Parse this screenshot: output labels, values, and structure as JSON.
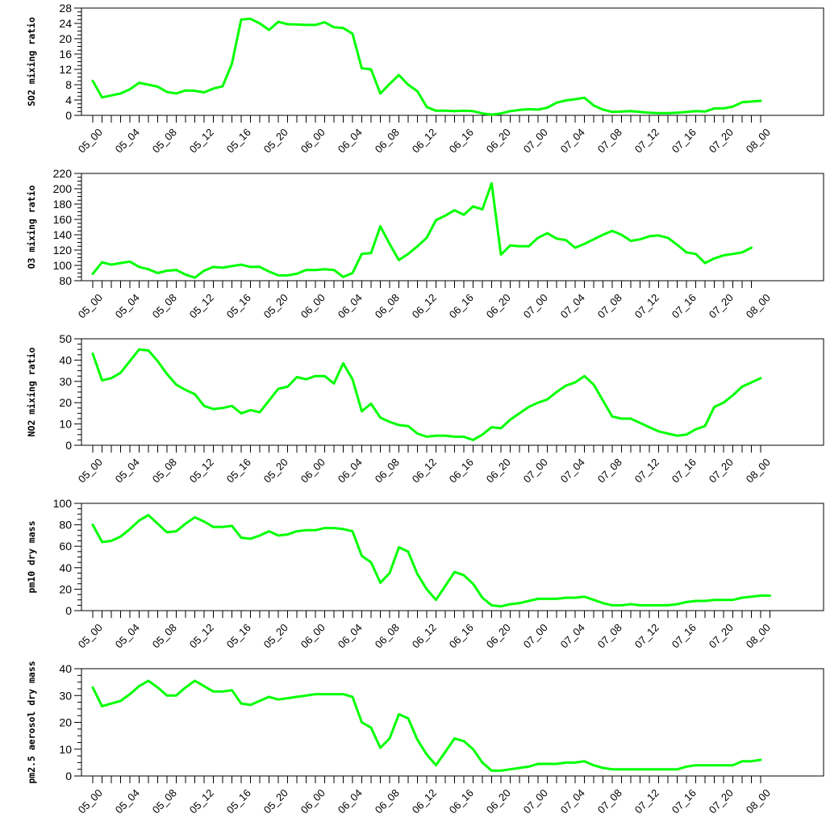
{
  "chart_data": [
    {
      "type": "line",
      "ylabel": "SO2 mixing ratio",
      "ylim": [
        0,
        28
      ],
      "yticks": [
        0,
        4,
        8,
        12,
        16,
        20,
        24,
        28
      ],
      "grid": false,
      "x_tick_labels": [
        "05_00",
        "05_04",
        "05_08",
        "05_12",
        "05_16",
        "05_20",
        "06_00",
        "06_04",
        "06_08",
        "06_12",
        "06_16",
        "06_20",
        "07_00",
        "07_04",
        "07_08",
        "07_12",
        "07_16",
        "07_20",
        "08_00"
      ],
      "series": [
        {
          "color": "#00ff00",
          "values": [
            9.0,
            4.7,
            5.2,
            5.7,
            6.8,
            8.5,
            8.0,
            7.5,
            6.1,
            5.7,
            6.5,
            6.4,
            6.0,
            7.0,
            7.6,
            13.5,
            25.0,
            25.2,
            24.0,
            22.3,
            24.4,
            23.8,
            23.7,
            23.6,
            23.6,
            24.3,
            23.0,
            22.8,
            21.3,
            12.3,
            12.0,
            5.7,
            8.2,
            10.5,
            8.0,
            6.3,
            2.2,
            1.2,
            1.2,
            1.1,
            1.2,
            1.1,
            0.5,
            0.2,
            0.5,
            1.1,
            1.4,
            1.6,
            1.5,
            2.0,
            3.3,
            3.9,
            4.2,
            4.6,
            2.6,
            1.5,
            0.9,
            1.0,
            1.1,
            0.9,
            0.7,
            0.6,
            0.6,
            0.7,
            0.9,
            1.1,
            1.0,
            1.8,
            1.8,
            2.3,
            3.4,
            3.6,
            3.8
          ]
        }
      ]
    },
    {
      "type": "line",
      "ylabel": "O3 mixing ratio",
      "ylim": [
        80,
        220
      ],
      "yticks": [
        80,
        100,
        120,
        140,
        160,
        180,
        200,
        220
      ],
      "grid": false,
      "x_tick_labels": [
        "05_00",
        "05_04",
        "05_08",
        "05_12",
        "05_16",
        "05_20",
        "06_00",
        "06_04",
        "06_08",
        "06_12",
        "06_16",
        "06_20",
        "07_00",
        "07_04",
        "07_08",
        "07_12",
        "07_16",
        "07_20",
        "08_00"
      ],
      "series": [
        {
          "color": "#00ff00",
          "values": [
            89,
            104,
            101,
            103,
            105,
            98,
            95,
            90,
            93,
            94,
            88,
            84,
            93,
            98,
            97,
            99,
            101,
            98,
            98,
            92,
            87,
            87,
            89,
            94,
            94,
            95,
            94,
            85,
            90,
            115,
            116,
            151,
            128,
            107,
            115,
            125,
            136,
            159,
            165,
            172,
            166,
            177,
            173,
            207,
            114,
            126,
            125,
            125,
            136,
            142,
            135,
            133,
            123,
            128,
            134,
            140,
            145,
            140,
            132,
            134,
            138,
            139,
            136,
            127,
            117,
            115,
            103,
            109,
            113,
            115,
            117,
            123
          ]
        }
      ]
    },
    {
      "type": "line",
      "ylabel": "NO2 mixing ratio",
      "ylim": [
        0,
        50
      ],
      "yticks": [
        0,
        10,
        20,
        30,
        40,
        50
      ],
      "grid": false,
      "x_tick_labels": [
        "05_00",
        "05_04",
        "05_08",
        "05_12",
        "05_16",
        "05_20",
        "06_00",
        "06_04",
        "06_08",
        "06_12",
        "06_16",
        "06_20",
        "07_00",
        "07_04",
        "07_08",
        "07_12",
        "07_16",
        "07_20",
        "08_00"
      ],
      "series": [
        {
          "color": "#00ff00",
          "values": [
            43,
            30.5,
            31.5,
            34,
            39.5,
            45,
            44.5,
            39.5,
            33.5,
            28.5,
            26,
            24,
            18.5,
            17,
            17.5,
            18.5,
            15,
            16.5,
            15.5,
            21,
            26.5,
            27.5,
            32,
            31,
            32.5,
            32.5,
            29,
            38.5,
            31,
            16,
            19.5,
            13,
            11,
            9.5,
            9,
            5.5,
            4,
            4.5,
            4.5,
            4,
            4,
            2.5,
            5,
            8.5,
            8,
            12,
            15,
            18,
            20,
            21.5,
            25,
            28,
            29.5,
            32.5,
            28.5,
            21,
            13.5,
            12.5,
            12.5,
            10.5,
            8.5,
            6.5,
            5.5,
            4.5,
            5,
            7.5,
            9,
            18,
            20,
            23.5,
            27.5,
            29.5,
            31.5
          ]
        }
      ]
    },
    {
      "type": "line",
      "ylabel": "pm10 dry mass",
      "ylim": [
        0,
        100
      ],
      "yticks": [
        0,
        20,
        40,
        60,
        80,
        100
      ],
      "grid": false,
      "x_tick_labels": [
        "05_00",
        "05_04",
        "05_08",
        "05_12",
        "05_16",
        "05_20",
        "06_00",
        "06_04",
        "06_08",
        "06_12",
        "06_16",
        "06_20",
        "07_00",
        "07_04",
        "07_08",
        "07_12",
        "07_16",
        "07_20",
        "08_00"
      ],
      "series": [
        {
          "color": "#00ff00",
          "values": [
            80,
            64,
            65,
            69,
            76,
            84,
            89,
            81,
            73,
            74,
            81,
            87,
            83,
            78,
            78,
            79,
            68,
            67,
            70,
            74,
            70,
            71,
            74,
            75,
            75,
            77,
            77,
            76,
            74,
            51,
            45,
            26,
            35,
            59,
            55,
            34,
            20,
            10,
            23,
            36,
            33,
            25,
            12,
            5,
            4,
            6,
            7,
            9,
            11,
            11,
            11,
            12,
            12,
            13,
            10,
            7,
            5,
            5,
            6,
            5,
            5,
            5,
            5,
            6,
            8,
            9,
            9,
            10,
            10,
            10,
            12,
            13,
            14,
            14
          ]
        }
      ]
    },
    {
      "type": "line",
      "ylabel": "pm2.5 aerosol dry mass",
      "ylim": [
        0,
        40
      ],
      "yticks": [
        0,
        10,
        20,
        30,
        40
      ],
      "grid": false,
      "x_tick_labels": [
        "05_00",
        "05_04",
        "05_08",
        "05_12",
        "05_16",
        "05_20",
        "06_00",
        "06_04",
        "06_08",
        "06_12",
        "06_16",
        "06_20",
        "07_00",
        "07_04",
        "07_08",
        "07_12",
        "07_16",
        "07_20",
        "08_00"
      ],
      "series": [
        {
          "color": "#00ff00",
          "values": [
            33,
            26,
            27,
            28,
            30.5,
            33.5,
            35.5,
            33,
            30,
            30,
            33,
            35.5,
            33.5,
            31.5,
            31.5,
            32,
            27,
            26.5,
            28,
            29.5,
            28.5,
            29,
            29.5,
            30,
            30.5,
            30.5,
            30.5,
            30.5,
            29.5,
            20,
            18,
            10.5,
            14,
            23,
            21.5,
            13.5,
            8,
            4,
            9,
            14,
            13,
            10,
            5,
            2,
            2,
            2.5,
            3,
            3.5,
            4.5,
            4.5,
            4.5,
            5,
            5,
            5.5,
            4,
            3,
            2.5,
            2.5,
            2.5,
            2.5,
            2.5,
            2.5,
            2.5,
            2.5,
            3.5,
            4,
            4,
            4,
            4,
            4,
            5.5,
            5.5,
            6
          ]
        }
      ]
    }
  ]
}
